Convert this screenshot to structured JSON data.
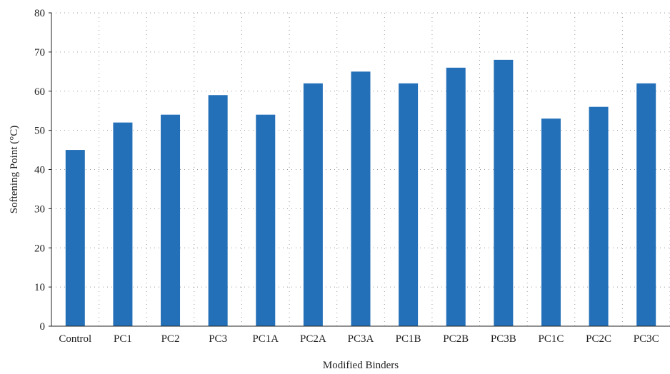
{
  "chart_data": {
    "type": "bar",
    "title": "",
    "xlabel": "Modified Binders",
    "ylabel": "Softening Point (°C)",
    "ylim": [
      0,
      80
    ],
    "yticks": [
      0,
      10,
      20,
      30,
      40,
      50,
      60,
      70,
      80
    ],
    "categories": [
      "Control",
      "PC1",
      "PC2",
      "PC3",
      "PC1A",
      "PC2A",
      "PC3A",
      "PC1B",
      "PC2B",
      "PC3B",
      "PC1C",
      "PC2C",
      "PC3C"
    ],
    "values": [
      45,
      52,
      54,
      59,
      54,
      62,
      65,
      62,
      66,
      68,
      53,
      56,
      62
    ],
    "bar_color": "#2470b8",
    "grid": true,
    "legend": "none"
  }
}
